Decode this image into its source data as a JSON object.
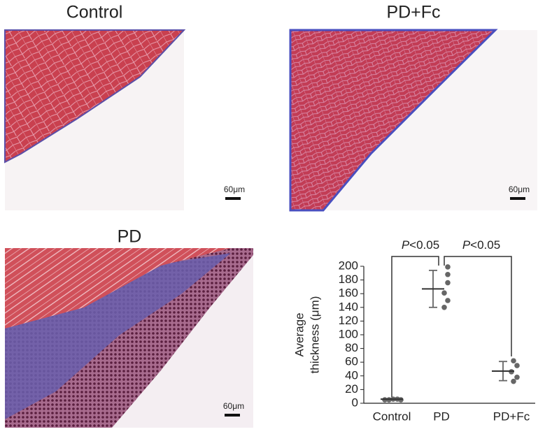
{
  "panels": [
    {
      "title": "Control",
      "scale_label": "60μm"
    },
    {
      "title": "PD+Fc",
      "scale_label": "60μm"
    },
    {
      "title": "PD",
      "scale_label": "60μm"
    }
  ],
  "chart_data": {
    "type": "dotplot",
    "ylabel": [
      "Average",
      "thickness (μm)"
    ],
    "categories": [
      "Control",
      "PD",
      "PD+Fc"
    ],
    "points": [
      [
        5,
        5,
        6,
        6,
        5
      ],
      [
        199,
        188,
        176,
        161,
        150,
        140
      ],
      [
        62,
        55,
        46,
        38,
        32
      ]
    ],
    "means": [
      6,
      167,
      47
    ],
    "err_high": [
      7,
      194,
      61
    ],
    "err_low": [
      5,
      140,
      33
    ],
    "color": "#666666",
    "ylim": [
      0,
      200
    ],
    "yticks": [
      0,
      20,
      40,
      60,
      80,
      100,
      120,
      140,
      160,
      180,
      200
    ],
    "annotations": [
      {
        "italic": "P",
        "text": "<0.05"
      },
      {
        "italic": "P",
        "text": "<0.05"
      }
    ]
  }
}
